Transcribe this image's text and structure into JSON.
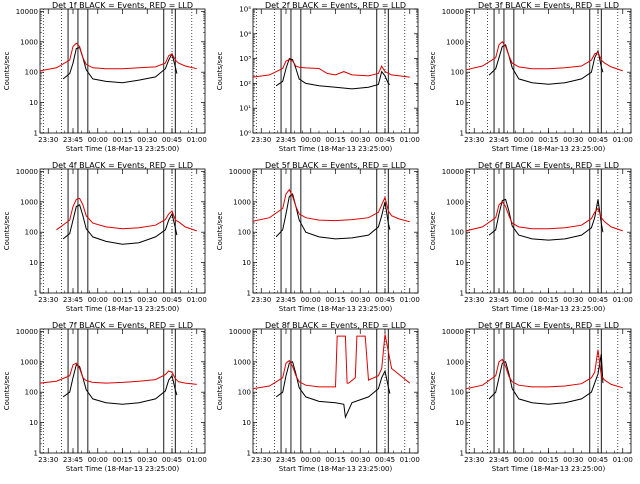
{
  "colors": {
    "events": "#000000",
    "lld": "#e00000",
    "axis": "#000000"
  },
  "common": {
    "xlabel": "Start Time (18-Mar-13 23:25:00)",
    "ylabel": "Counts/sec",
    "xticks": [
      "23:30",
      "23:45",
      "00:00",
      "00:15",
      "00:30",
      "00:45",
      "01:00"
    ],
    "xtick_minutes": [
      5,
      20,
      35,
      50,
      65,
      80,
      95
    ],
    "xlim_minutes": [
      0,
      100
    ],
    "minutes_note_unit": "minutes after 23:25:00",
    "yticks_default": [
      "1",
      "10",
      "100",
      "1000",
      "10000"
    ],
    "yticks_2f": [
      "10⁰",
      "10¹",
      "10²",
      "10³",
      "10⁴",
      "10⁵"
    ]
  },
  "chart_data": [
    {
      "type": "line",
      "title": "Det 1f BLACK = Events, RED = LLD",
      "ylim": [
        1,
        12000
      ],
      "log_y": true,
      "series": [
        {
          "name": "Events",
          "x": [
            14,
            18,
            20,
            22,
            24,
            26,
            28,
            32,
            40,
            50,
            60,
            70,
            76,
            78,
            80,
            82,
            83
          ],
          "values": [
            60,
            90,
            200,
            600,
            650,
            300,
            120,
            60,
            50,
            45,
            55,
            70,
            130,
            250,
            400,
            150,
            90
          ]
        },
        {
          "name": "LLD",
          "x": [
            0,
            10,
            18,
            20,
            22,
            24,
            26,
            28,
            32,
            40,
            50,
            60,
            70,
            76,
            78,
            80,
            82,
            84,
            88,
            95
          ],
          "values": [
            110,
            140,
            250,
            700,
            900,
            700,
            300,
            180,
            140,
            130,
            130,
            140,
            150,
            200,
            350,
            400,
            250,
            200,
            160,
            130
          ]
        }
      ]
    },
    {
      "type": "line",
      "title": "Det 2f BLACK = Events, RED = LLD",
      "ylim": [
        1,
        100000
      ],
      "log_y": true,
      "series": [
        {
          "name": "Events",
          "x": [
            14,
            18,
            20,
            22,
            24,
            26,
            28,
            32,
            40,
            50,
            60,
            70,
            76,
            78,
            80,
            82,
            83
          ],
          "values": [
            80,
            120,
            400,
            1000,
            900,
            400,
            150,
            100,
            80,
            70,
            60,
            70,
            90,
            300,
            200,
            100,
            90
          ]
        },
        {
          "name": "LLD",
          "x": [
            0,
            10,
            18,
            20,
            22,
            24,
            26,
            28,
            32,
            40,
            45,
            50,
            55,
            60,
            70,
            76,
            78,
            80,
            84,
            95
          ],
          "values": [
            180,
            220,
            400,
            800,
            900,
            800,
            500,
            450,
            420,
            400,
            250,
            220,
            300,
            220,
            200,
            250,
            500,
            300,
            220,
            180
          ]
        }
      ]
    },
    {
      "type": "line",
      "title": "Det 3f BLACK = Events, RED = LLD",
      "ylim": [
        1,
        12000
      ],
      "log_y": true,
      "series": [
        {
          "name": "Events",
          "x": [
            14,
            18,
            20,
            22,
            24,
            26,
            28,
            32,
            40,
            50,
            60,
            70,
            76,
            78,
            80,
            82,
            83
          ],
          "values": [
            80,
            130,
            300,
            700,
            800,
            350,
            140,
            60,
            45,
            40,
            45,
            60,
            100,
            300,
            500,
            150,
            100
          ]
        },
        {
          "name": "LLD",
          "x": [
            0,
            10,
            18,
            20,
            22,
            24,
            26,
            28,
            32,
            40,
            50,
            60,
            70,
            76,
            78,
            80,
            82,
            84,
            88,
            95
          ],
          "values": [
            120,
            160,
            300,
            800,
            1000,
            700,
            350,
            200,
            150,
            130,
            130,
            140,
            160,
            250,
            400,
            450,
            250,
            200,
            150,
            110
          ]
        }
      ]
    },
    {
      "type": "line",
      "title": "Det 4f BLACK = Events, RED = LLD",
      "ylim": [
        1,
        12000
      ],
      "log_y": true,
      "series": [
        {
          "name": "Events",
          "x": [
            14,
            18,
            20,
            22,
            24,
            26,
            28,
            32,
            40,
            50,
            60,
            70,
            76,
            78,
            80,
            82,
            83
          ],
          "values": [
            60,
            90,
            250,
            700,
            800,
            350,
            130,
            70,
            50,
            40,
            45,
            70,
            120,
            250,
            400,
            140,
            80
          ]
        },
        {
          "name": "LLD",
          "x": [
            10,
            18,
            20,
            22,
            24,
            26,
            28,
            32,
            40,
            50,
            60,
            70,
            76,
            78,
            80,
            82,
            84,
            88,
            95
          ],
          "values": [
            120,
            250,
            700,
            1200,
            1300,
            800,
            350,
            200,
            150,
            130,
            140,
            170,
            260,
            400,
            500,
            250,
            220,
            150,
            110
          ]
        }
      ]
    },
    {
      "type": "line",
      "title": "Det 5f BLACK = Events, RED = LLD",
      "ylim": [
        1,
        12000
      ],
      "log_y": true,
      "series": [
        {
          "name": "Events",
          "x": [
            14,
            18,
            20,
            22,
            24,
            26,
            28,
            32,
            40,
            50,
            60,
            70,
            76,
            78,
            80,
            82,
            83
          ],
          "values": [
            70,
            120,
            400,
            1500,
            1800,
            700,
            250,
            100,
            70,
            60,
            65,
            80,
            150,
            350,
            1000,
            200,
            120
          ]
        },
        {
          "name": "LLD",
          "x": [
            0,
            10,
            18,
            20,
            22,
            24,
            26,
            28,
            32,
            40,
            50,
            60,
            70,
            76,
            78,
            80,
            82,
            84,
            88,
            95
          ],
          "values": [
            230,
            300,
            600,
            1800,
            2500,
            1500,
            700,
            400,
            300,
            250,
            240,
            260,
            300,
            450,
            800,
            1400,
            500,
            350,
            280,
            220
          ]
        }
      ]
    },
    {
      "type": "line",
      "title": "Det 6f BLACK = Events, RED = LLD",
      "ylim": [
        1,
        12000
      ],
      "log_y": true,
      "series": [
        {
          "name": "Events",
          "x": [
            14,
            18,
            20,
            22,
            24,
            26,
            28,
            32,
            40,
            50,
            60,
            70,
            76,
            78,
            80,
            82,
            83
          ],
          "values": [
            80,
            120,
            400,
            1100,
            1200,
            500,
            160,
            80,
            60,
            55,
            60,
            80,
            140,
            300,
            1200,
            200,
            100
          ]
        },
        {
          "name": "LLD",
          "x": [
            0,
            10,
            18,
            20,
            22,
            24,
            26,
            28,
            32,
            40,
            50,
            60,
            70,
            76,
            78,
            80,
            82,
            84,
            88,
            95
          ],
          "values": [
            110,
            150,
            300,
            800,
            1000,
            700,
            350,
            200,
            150,
            130,
            130,
            140,
            170,
            280,
            450,
            600,
            300,
            220,
            150,
            110
          ]
        }
      ]
    },
    {
      "type": "line",
      "title": "Det 7f BLACK = Events, RED = LLD",
      "ylim": [
        1,
        12000
      ],
      "log_y": true,
      "series": [
        {
          "name": "Events",
          "x": [
            14,
            18,
            20,
            22,
            24,
            26,
            28,
            32,
            40,
            50,
            60,
            70,
            76,
            78,
            80,
            82,
            83
          ],
          "values": [
            70,
            100,
            300,
            800,
            700,
            300,
            120,
            60,
            45,
            40,
            45,
            60,
            110,
            250,
            350,
            120,
            80
          ]
        },
        {
          "name": "LLD",
          "x": [
            0,
            10,
            18,
            20,
            22,
            24,
            26,
            28,
            32,
            40,
            50,
            60,
            70,
            76,
            78,
            80,
            82,
            84,
            88,
            95
          ],
          "values": [
            200,
            230,
            350,
            800,
            900,
            600,
            300,
            240,
            210,
            200,
            210,
            230,
            260,
            380,
            500,
            450,
            280,
            220,
            200,
            180
          ]
        }
      ]
    },
    {
      "type": "line",
      "title": "Det 8f BLACK = Events, RED = LLD",
      "ylim": [
        1,
        12000
      ],
      "log_y": true,
      "series": [
        {
          "name": "Events",
          "x": [
            14,
            18,
            20,
            22,
            24,
            26,
            28,
            32,
            40,
            50,
            55,
            56,
            60,
            70,
            76,
            78,
            80,
            82,
            83
          ],
          "values": [
            70,
            100,
            350,
            900,
            1000,
            400,
            140,
            70,
            50,
            45,
            40,
            15,
            45,
            70,
            130,
            300,
            500,
            150,
            90
          ]
        },
        {
          "name": "LLD",
          "x": [
            0,
            10,
            18,
            20,
            22,
            24,
            26,
            28,
            32,
            40,
            48,
            50,
            51,
            52,
            56,
            57,
            58,
            62,
            63,
            68,
            70,
            76,
            78,
            80,
            84,
            95
          ],
          "values": [
            130,
            160,
            300,
            900,
            1100,
            700,
            350,
            220,
            170,
            150,
            150,
            150,
            7000,
            7000,
            7000,
            200,
            200,
            300,
            7000,
            7000,
            250,
            350,
            600,
            8000,
            600,
            200
          ]
        }
      ]
    },
    {
      "type": "line",
      "title": "Det 9f BLACK = Events, RED = LLD",
      "ylim": [
        1,
        12000
      ],
      "log_y": true,
      "series": [
        {
          "name": "Events",
          "x": [
            14,
            18,
            20,
            22,
            24,
            26,
            28,
            32,
            40,
            50,
            60,
            70,
            76,
            78,
            80,
            82,
            83
          ],
          "values": [
            60,
            100,
            300,
            900,
            1000,
            400,
            130,
            60,
            45,
            40,
            45,
            60,
            100,
            200,
            400,
            1800,
            200
          ]
        },
        {
          "name": "LLD",
          "x": [
            0,
            10,
            18,
            20,
            22,
            24,
            26,
            28,
            32,
            40,
            50,
            60,
            70,
            76,
            78,
            80,
            82,
            84,
            88,
            95
          ],
          "values": [
            130,
            170,
            350,
            1000,
            1200,
            700,
            330,
            220,
            170,
            150,
            150,
            160,
            190,
            300,
            450,
            2500,
            350,
            250,
            180,
            140
          ]
        }
      ]
    }
  ]
}
